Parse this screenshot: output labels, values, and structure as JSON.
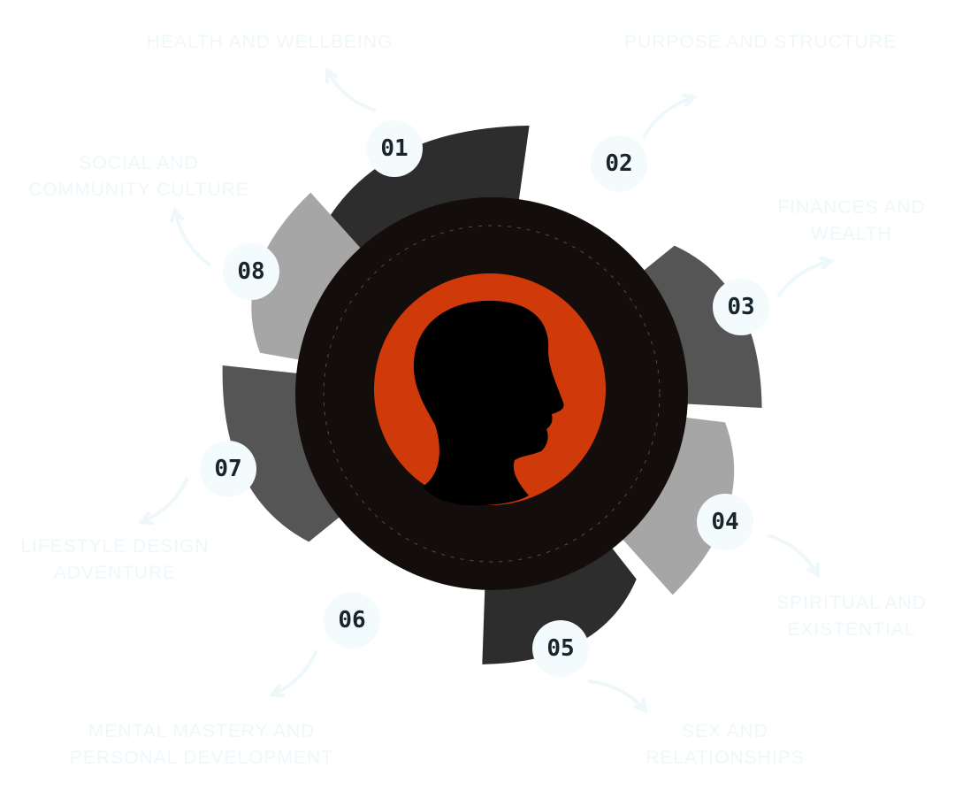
{
  "colors": {
    "dark": "#2d2d2d",
    "mid": "#555555",
    "light": "#a6a6a6",
    "core": "#130d0b",
    "sun": "#d03a0a",
    "label": "#eef8fa",
    "badge_bg": "#f3fbfc",
    "badge_text": "#16262c"
  },
  "center_icon": "head-silhouette-icon",
  "items": [
    {
      "num": "01",
      "label": [
        "HEALTH AND WELLBEING"
      ]
    },
    {
      "num": "02",
      "label": [
        "PURPOSE AND STRUCTURE"
      ]
    },
    {
      "num": "03",
      "label": [
        "FINANCES AND",
        "WEALTH"
      ]
    },
    {
      "num": "04",
      "label": [
        "SPIRITUAL AND",
        "EXISTENTIAL"
      ]
    },
    {
      "num": "05",
      "label": [
        "SEX AND",
        "RELATIONSHIPS"
      ]
    },
    {
      "num": "06",
      "label": [
        "MENTAL MASTERY AND",
        "PERSONAL DEVELOPMENT"
      ]
    },
    {
      "num": "07",
      "label": [
        "LIFESTYLE DESIGN",
        "ADVENTURE"
      ]
    },
    {
      "num": "08",
      "label": [
        "SOCIAL AND",
        "COMMUNITY CULTURE"
      ]
    }
  ]
}
